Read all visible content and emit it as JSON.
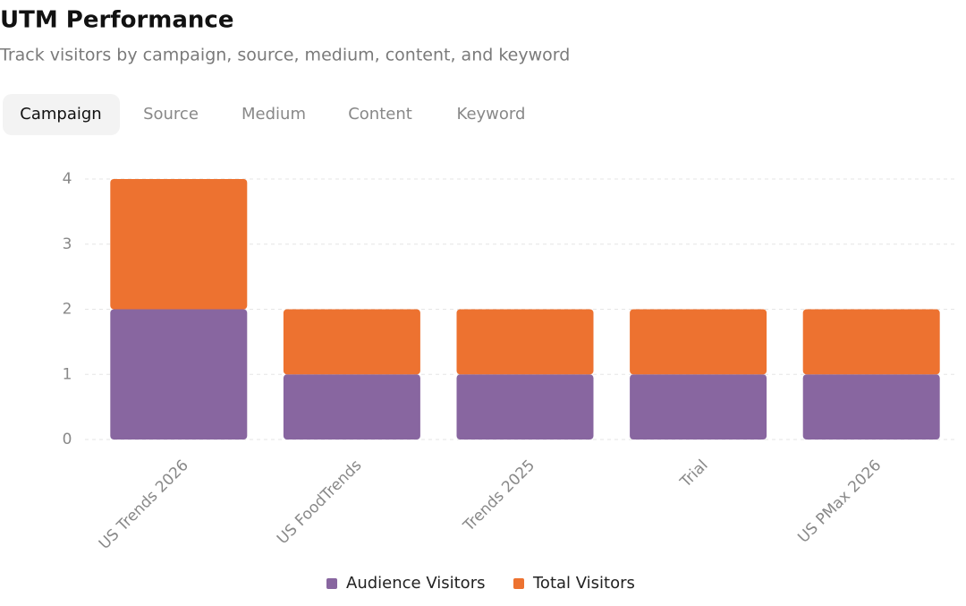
{
  "header": {
    "title": "UTM Performance",
    "subtitle": "Track visitors by campaign, source, medium, content, and keyword"
  },
  "tabs": [
    "Campaign",
    "Source",
    "Medium",
    "Content",
    "Keyword"
  ],
  "active_tab": "Campaign",
  "chart_data": {
    "type": "stacked-bar",
    "categories": [
      "US Trends 2026",
      "US FoodTrends",
      "Trends 2025",
      "Trial",
      "US PMax 2026"
    ],
    "series": [
      {
        "name": "Audience Visitors",
        "color": "#8866a0",
        "values": [
          2,
          1,
          1,
          1,
          1
        ]
      },
      {
        "name": "Total Visitors",
        "color": "#ed7230",
        "values": [
          2,
          1,
          1,
          1,
          1
        ]
      }
    ],
    "ylim": [
      0,
      4
    ],
    "yticks": [
      0,
      1,
      2,
      3,
      4
    ],
    "grid": true,
    "legend": "bottom"
  }
}
